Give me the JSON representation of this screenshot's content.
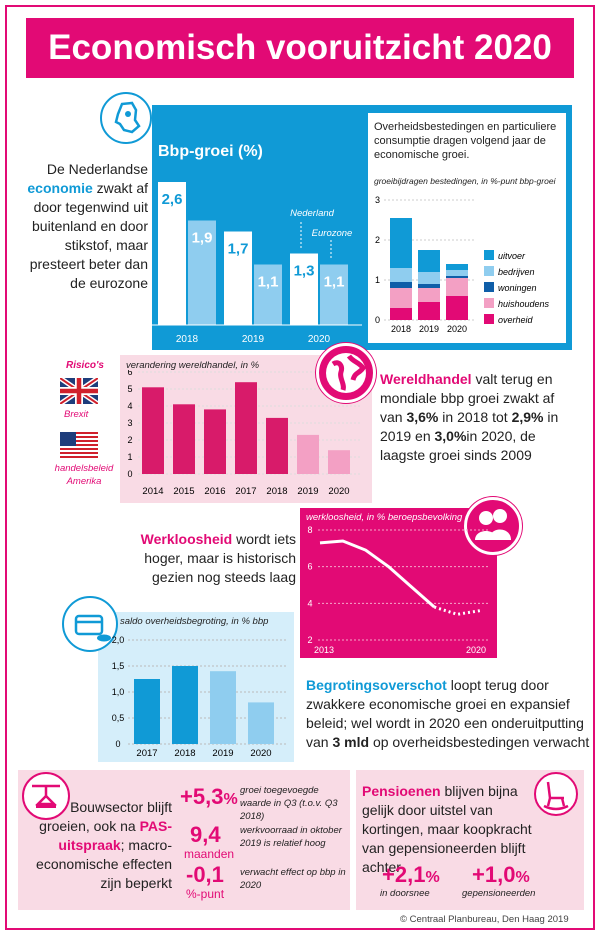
{
  "title": "Economisch vooruitzicht 2020",
  "bbp": {
    "heading": "Bbp-groei (%)",
    "text_pre": "De Nederlandse",
    "text_highlight": "economie",
    "text_post": "zwakt af door tegenwind uit buitenland en door stikstof, maar presteert beter dan de eurozone",
    "legend_nl": "Nederland",
    "legend_ez": "Eurozone",
    "chart_data": {
      "type": "bar",
      "categories": [
        "2018",
        "2019",
        "2020"
      ],
      "series": [
        {
          "name": "Nederland",
          "values": [
            2.6,
            1.7,
            1.3
          ],
          "labels": [
            "2,6",
            "1,7",
            "1,3"
          ]
        },
        {
          "name": "Eurozone",
          "values": [
            1.9,
            1.1,
            1.1
          ],
          "labels": [
            "1,9",
            "1,1",
            "1,1"
          ]
        }
      ],
      "title": "Bbp-groei (%)"
    }
  },
  "contrib": {
    "text": "Overheidsbestedingen en particuliere consumptie dragen volgend jaar de economische groei.",
    "axis_title": "groeibijdragen bestedingen, in %-punt bbp-groei",
    "chart_data": {
      "type": "bar",
      "stacked": true,
      "categories": [
        "2018",
        "2019",
        "2020"
      ],
      "ylim": [
        0,
        3
      ],
      "yticks": [
        "0",
        "1",
        "2",
        "3"
      ],
      "series": [
        {
          "name": "overheid",
          "color": "#e20a75",
          "values": [
            0.3,
            0.45,
            0.6
          ]
        },
        {
          "name": "huishoudens",
          "color": "#f3a0c4",
          "values": [
            0.5,
            0.35,
            0.45
          ]
        },
        {
          "name": "woningen",
          "color": "#0f5ea8",
          "values": [
            0.15,
            0.1,
            0.05
          ]
        },
        {
          "name": "bedrijven",
          "color": "#8fcdef",
          "values": [
            0.35,
            0.3,
            0.15
          ]
        },
        {
          "name": "uitvoer",
          "color": "#109ad6",
          "values": [
            1.25,
            0.55,
            0.15
          ]
        }
      ]
    }
  },
  "trade": {
    "risks_label": "Risico's",
    "brexit": "Brexit",
    "handels": "handelsbeleid Amerika",
    "axis_title": "verandering wereldhandel, in %",
    "text_highlight": "Wereldhandel",
    "text_p1": "valt terug en mondiale bbp groei zwakt af van",
    "v1": "3,6%",
    "t2": "in 2018 tot",
    "v2": "2,9%",
    "t3": "in 2019 en",
    "v3": "3,0%",
    "t4": "in 2020, de laagste groei sinds 2009",
    "chart_data": {
      "type": "bar",
      "categories": [
        "2014",
        "2015",
        "2016",
        "2017",
        "2018",
        "2019",
        "2020"
      ],
      "values": [
        5.1,
        4.1,
        3.8,
        5.4,
        3.3,
        2.3,
        1.4
      ],
      "ylim": [
        0,
        6
      ],
      "yticks": [
        "0",
        "1",
        "2",
        "3",
        "4",
        "5",
        "6"
      ]
    }
  },
  "unemp": {
    "text_highlight": "Werkloosheid",
    "text_post": "wordt iets hoger, maar is historisch gezien nog steeds laag",
    "axis_title": "werkloosheid, in % beroepsbevolking",
    "chart_data": {
      "type": "line",
      "x": [
        2013,
        2014,
        2015,
        2016,
        2017,
        2018,
        2019,
        2020
      ],
      "y": [
        7.3,
        7.4,
        6.9,
        6.0,
        4.9,
        3.8,
        3.4,
        3.6
      ],
      "forecast_from": 2018,
      "ylim": [
        2,
        8
      ],
      "yticks": [
        "2",
        "4",
        "6",
        "8"
      ],
      "xticks": [
        "2013",
        "2020"
      ]
    }
  },
  "budget": {
    "axis_title": "saldo overheidsbegroting, in % bbp",
    "text_highlight": "Begrotingsoverschot",
    "text_post": "loopt terug door zwakkere economische groei en expansief beleid; wel wordt in 2020 een onderuitputting van",
    "text_bold": "3 mld",
    "text_end": "op overheidsbestedingen verwacht",
    "chart_data": {
      "type": "bar",
      "categories": [
        "2017",
        "2018",
        "2019",
        "2020"
      ],
      "values": [
        1.25,
        1.5,
        1.4,
        0.8
      ],
      "ylim": [
        0,
        2
      ],
      "yticks": [
        "0",
        "0,5",
        "1,0",
        "1,5",
        "2,0"
      ]
    }
  },
  "bouw": {
    "text_pre": "Bouwsector blijft groeien, ook na",
    "text_highlight": "PAS-uitspraak",
    "text_post": "; macro-economische effecten zijn beperkt",
    "n1": "+5,3",
    "n1_unit": "%",
    "n1_desc": "groei toegevoegde waarde in Q3 (t.o.v. Q3 2018)",
    "n2": "9,4",
    "n2_unit": "maanden",
    "n2_desc": "werkvoorraad in oktober 2019 is relatief hoog",
    "n3": "-0,1",
    "n3_unit": "%-punt",
    "n3_desc": "verwacht effect op bbp in 2020"
  },
  "pensioen": {
    "text_highlight": "Pensioenen",
    "text_post": "blijven bijna gelijk door uitstel van kortingen, maar koopkracht van gepensioneerden blijft achter",
    "n1": "+2,1",
    "n1_unit": "%",
    "n1_label": "in doorsnee",
    "n2": "+1,0",
    "n2_unit": "%",
    "n2_label": "gepensioneerden"
  },
  "credit": "© Centraal Planbureau, Den Haag 2019"
}
